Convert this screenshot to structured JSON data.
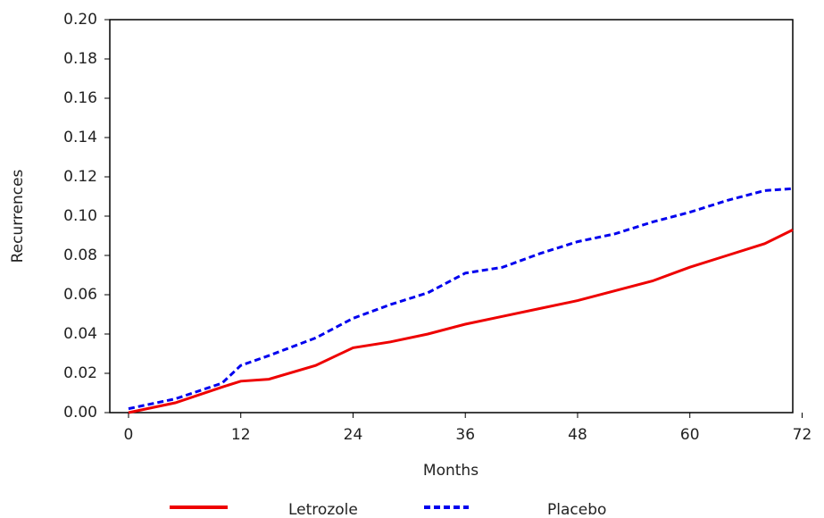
{
  "chart_data": {
    "type": "line",
    "x_label": "Months",
    "y_label": "Recurrences",
    "x": [
      0,
      5,
      10,
      12,
      15,
      20,
      24,
      28,
      32,
      36,
      40,
      44,
      48,
      52,
      56,
      60,
      64,
      68,
      71
    ],
    "series": [
      {
        "name": "Letrozole",
        "color": "#ee0000",
        "dash": "solid",
        "values": [
          0,
          0.005,
          0.013,
          0.016,
          0.017,
          0.024,
          0.033,
          0.036,
          0.04,
          0.045,
          0.049,
          0.053,
          0.057,
          0.062,
          0.067,
          0.074,
          0.08,
          0.086,
          0.093
        ]
      },
      {
        "name": "Placebo",
        "color": "#0000ee",
        "dash": "dashed",
        "values": [
          0.002,
          0.007,
          0.015,
          0.024,
          0.029,
          0.038,
          0.048,
          0.055,
          0.061,
          0.071,
          0.074,
          0.081,
          0.087,
          0.091,
          0.097,
          0.102,
          0.108,
          0.113,
          0.114
        ]
      }
    ],
    "xlim": [
      -2,
      71
    ],
    "ylim": [
      0,
      0.2
    ],
    "xticks": [
      0,
      12,
      24,
      36,
      48,
      60,
      72
    ],
    "yticks": [
      {
        "value": 0,
        "label": "0.00"
      },
      {
        "value": 0.02,
        "label": "0.02"
      },
      {
        "value": 0.04,
        "label": "0.04"
      },
      {
        "value": 0.06,
        "label": "0.06"
      },
      {
        "value": 0.08,
        "label": "0.08"
      },
      {
        "value": 0.1,
        "label": "0.10"
      },
      {
        "value": 0.12,
        "label": "0.12"
      },
      {
        "value": 0.14,
        "label": "0.14"
      },
      {
        "value": 0.16,
        "label": "0.16"
      },
      {
        "value": 0.18,
        "label": "0.18"
      },
      {
        "value": 0.2,
        "label": "0.20"
      }
    ],
    "grid": false,
    "legend": "bottom"
  }
}
